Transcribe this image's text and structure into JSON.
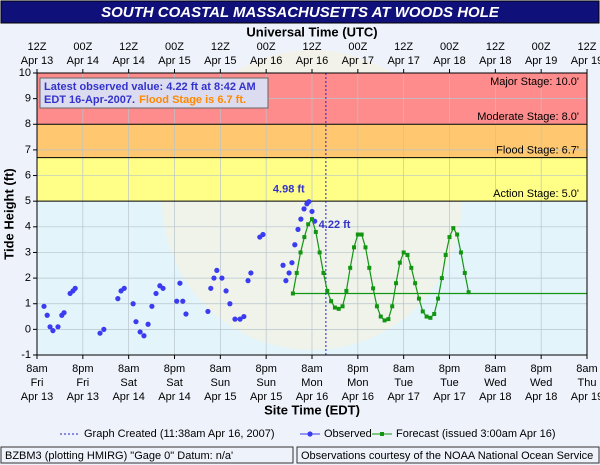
{
  "chart_data": {
    "type": "scatter",
    "title": "SOUTH COASTAL MASSACHUSETTS  AT WOODS HOLE",
    "top_axis_label": "Universal Time (UTC)",
    "x_label": "Site Time (EDT)",
    "y_label": "Tide Height (ft)",
    "xlim": [
      "2007-04-13T08:00",
      "2007-04-19T08:00"
    ],
    "ylim": [
      -1,
      10
    ],
    "yticks": [
      -1,
      0,
      1,
      2,
      3,
      4,
      5,
      6,
      7,
      8,
      9,
      10
    ],
    "grid": true,
    "xticks": [
      {
        "value": "2007-04-13T08:00",
        "label": [
          "8am",
          "Fri",
          "Apr 13"
        ]
      },
      {
        "value": "2007-04-13T20:00",
        "label": [
          "8pm",
          "Fri",
          "Apr 13"
        ]
      },
      {
        "value": "2007-04-14T08:00",
        "label": [
          "8am",
          "Sat",
          "Apr 14"
        ]
      },
      {
        "value": "2007-04-14T20:00",
        "label": [
          "8pm",
          "Sat",
          "Apr 14"
        ]
      },
      {
        "value": "2007-04-15T08:00",
        "label": [
          "8am",
          "Sun",
          "Apr 15"
        ]
      },
      {
        "value": "2007-04-15T20:00",
        "label": [
          "8pm",
          "Sun",
          "Apr 15"
        ]
      },
      {
        "value": "2007-04-16T08:00",
        "label": [
          "8am",
          "Mon",
          "Apr 16"
        ]
      },
      {
        "value": "2007-04-16T20:00",
        "label": [
          "8pm",
          "Mon",
          "Apr 16"
        ]
      },
      {
        "value": "2007-04-17T08:00",
        "label": [
          "8am",
          "Tue",
          "Apr 17"
        ]
      },
      {
        "value": "2007-04-17T20:00",
        "label": [
          "8pm",
          "Tue",
          "Apr 17"
        ]
      },
      {
        "value": "2007-04-18T08:00",
        "label": [
          "8am",
          "Wed",
          "Apr 18"
        ]
      },
      {
        "value": "2007-04-18T20:00",
        "label": [
          "8pm",
          "Wed",
          "Apr 18"
        ]
      },
      {
        "value": "2007-04-19T08:00",
        "label": [
          "8am",
          "Thu",
          "Apr 19"
        ]
      }
    ],
    "top_xticks": [
      {
        "value": "2007-04-13T08:00",
        "label": [
          "12Z",
          "Apr 13"
        ]
      },
      {
        "value": "2007-04-13T20:00",
        "label": [
          "00Z",
          "Apr 14"
        ]
      },
      {
        "value": "2007-04-14T08:00",
        "label": [
          "12Z",
          "Apr 14"
        ]
      },
      {
        "value": "2007-04-14T20:00",
        "label": [
          "00Z",
          "Apr 15"
        ]
      },
      {
        "value": "2007-04-15T08:00",
        "label": [
          "12Z",
          "Apr 15"
        ]
      },
      {
        "value": "2007-04-15T20:00",
        "label": [
          "00Z",
          "Apr 16"
        ]
      },
      {
        "value": "2007-04-16T08:00",
        "label": [
          "12Z",
          "Apr 16"
        ]
      },
      {
        "value": "2007-04-16T20:00",
        "label": [
          "00Z",
          "Apr 17"
        ]
      },
      {
        "value": "2007-04-17T08:00",
        "label": [
          "12Z",
          "Apr 17"
        ]
      },
      {
        "value": "2007-04-17T20:00",
        "label": [
          "00Z",
          "Apr 18"
        ]
      },
      {
        "value": "2007-04-18T08:00",
        "label": [
          "12Z",
          "Apr 18"
        ]
      },
      {
        "value": "2007-04-18T20:00",
        "label": [
          "00Z",
          "Apr 19"
        ]
      },
      {
        "value": "2007-04-19T08:00",
        "label": [
          "12Z",
          "Apr 19"
        ]
      }
    ],
    "stages": [
      {
        "label": "Action Stage: 5.0'",
        "value": 5.0,
        "color": "#ffff88"
      },
      {
        "label": "Flood Stage: 6.7'",
        "value": 6.7,
        "color": "#ffc870"
      },
      {
        "label": "Moderate Stage: 8.0'",
        "value": 8.0,
        "color": "#ff8c8c"
      },
      {
        "label": "Major Stage: 10.0'",
        "value": 10.0,
        "color": "#ff6060"
      }
    ],
    "series": [
      {
        "name": "Observed",
        "color": "#3b3bf0",
        "kind": "points",
        "x": [
          "2007-04-13T09:50",
          "2007-04-13T10:40",
          "2007-04-13T11:25",
          "2007-04-13T12:10",
          "2007-04-13T13:30",
          "2007-04-13T14:30",
          "2007-04-13T15:05",
          "2007-04-13T16:40",
          "2007-04-13T17:25",
          "2007-04-13T18:00",
          "2007-04-14T00:30",
          "2007-04-14T01:30",
          "2007-04-14T05:10",
          "2007-04-14T06:00",
          "2007-04-14T06:50",
          "2007-04-14T09:10",
          "2007-04-14T09:55",
          "2007-04-14T11:00",
          "2007-04-14T12:00",
          "2007-04-14T13:05",
          "2007-04-14T14:05",
          "2007-04-14T15:10",
          "2007-04-14T16:10",
          "2007-04-14T17:00",
          "2007-04-14T20:35",
          "2007-04-14T21:25",
          "2007-04-14T22:10",
          "2007-04-14T23:00",
          "2007-04-15T04:45",
          "2007-04-15T05:30",
          "2007-04-15T06:20",
          "2007-04-15T07:05",
          "2007-04-15T08:25",
          "2007-04-15T09:30",
          "2007-04-15T10:30",
          "2007-04-15T11:50",
          "2007-04-15T13:10",
          "2007-04-15T14:10",
          "2007-04-15T15:15",
          "2007-04-15T16:00",
          "2007-04-15T18:20",
          "2007-04-15T19:10",
          "2007-04-16T00:25",
          "2007-04-16T01:10",
          "2007-04-16T02:00",
          "2007-04-16T02:45",
          "2007-04-16T03:30",
          "2007-04-16T04:20",
          "2007-04-16T05:05",
          "2007-04-16T05:55",
          "2007-04-16T06:40",
          "2007-04-16T07:10",
          "2007-04-16T08:00",
          "2007-04-16T08:42"
        ],
        "values": [
          0.9,
          0.55,
          0.1,
          -0.05,
          0.1,
          0.55,
          0.65,
          1.4,
          1.5,
          1.6,
          -0.15,
          0.0,
          1.2,
          1.5,
          1.6,
          1.0,
          0.3,
          -0.1,
          -0.25,
          0.2,
          0.9,
          1.4,
          1.7,
          1.6,
          1.1,
          1.8,
          1.1,
          0.6,
          0.7,
          1.6,
          2.0,
          2.3,
          2.0,
          1.5,
          1.0,
          0.4,
          0.4,
          0.5,
          1.9,
          2.2,
          3.6,
          3.7,
          2.5,
          1.9,
          2.2,
          2.6,
          3.3,
          3.9,
          4.3,
          4.7,
          4.9,
          4.98,
          4.6,
          4.22
        ]
      },
      {
        "name": "Forecast (issued 3:00am Apr 16)",
        "color": "#129612",
        "kind": "line",
        "x": [
          "2007-04-16T03:00",
          "2007-04-16T04:00",
          "2007-04-16T05:00",
          "2007-04-16T06:00",
          "2007-04-16T07:00",
          "2007-04-16T08:00",
          "2007-04-16T09:00",
          "2007-04-16T10:00",
          "2007-04-16T11:00",
          "2007-04-16T12:00",
          "2007-04-16T13:00",
          "2007-04-16T14:00",
          "2007-04-16T15:00",
          "2007-04-16T16:00",
          "2007-04-16T17:00",
          "2007-04-16T18:00",
          "2007-04-16T19:00",
          "2007-04-16T20:00",
          "2007-04-16T21:00",
          "2007-04-16T22:00",
          "2007-04-16T23:00",
          "2007-04-17T00:00",
          "2007-04-17T01:00",
          "2007-04-17T02:00",
          "2007-04-17T03:00",
          "2007-04-17T04:00",
          "2007-04-17T05:00",
          "2007-04-17T06:00",
          "2007-04-17T07:00",
          "2007-04-17T08:00",
          "2007-04-17T09:00",
          "2007-04-17T10:00",
          "2007-04-17T11:00",
          "2007-04-17T12:00",
          "2007-04-17T13:00",
          "2007-04-17T14:00",
          "2007-04-17T15:00",
          "2007-04-17T16:00",
          "2007-04-17T17:00",
          "2007-04-17T18:00",
          "2007-04-17T19:00",
          "2007-04-17T20:00",
          "2007-04-17T21:00",
          "2007-04-17T22:00",
          "2007-04-17T23:00",
          "2007-04-18T00:00",
          "2007-04-18T01:00"
        ],
        "values": [
          1.4,
          2.2,
          3.0,
          3.6,
          4.1,
          4.3,
          3.8,
          3.0,
          2.2,
          1.5,
          1.1,
          0.85,
          0.8,
          0.9,
          1.5,
          2.4,
          3.2,
          3.7,
          3.7,
          3.2,
          2.4,
          1.6,
          0.9,
          0.5,
          0.35,
          0.4,
          0.9,
          1.8,
          2.6,
          3.0,
          2.9,
          2.4,
          1.8,
          1.2,
          0.7,
          0.5,
          0.45,
          0.6,
          1.2,
          2.0,
          2.9,
          3.6,
          3.95,
          3.7,
          3.0,
          2.2,
          1.45
        ]
      }
    ],
    "reference_line": {
      "value": 1.4,
      "x_start": "2007-04-16T03:00",
      "color": "#129612"
    },
    "graph_created": {
      "label": "Graph Created (11:38am Apr 16, 2007)",
      "x": "2007-04-16T11:38",
      "color": "#2222cc"
    },
    "annotations": [
      {
        "text": "4.98 ft",
        "x": "2007-04-16T07:10",
        "y": 4.98
      },
      {
        "text": "4.22 ft",
        "x": "2007-04-16T08:42",
        "y": 4.22
      }
    ],
    "info_box": {
      "lines": [
        "Latest observed value: 4.22 ft at 8:42 AM",
        "EDT 16-Apr-2007."
      ],
      "flood_text": "Flood Stage is 6.7 ft."
    },
    "footer": {
      "left": "BZBM3 (plotting HMIRG)  \"Gage 0\" Datum: n/a'",
      "right": "Observations courtesy of the  NOAA National Ocean Service"
    }
  }
}
